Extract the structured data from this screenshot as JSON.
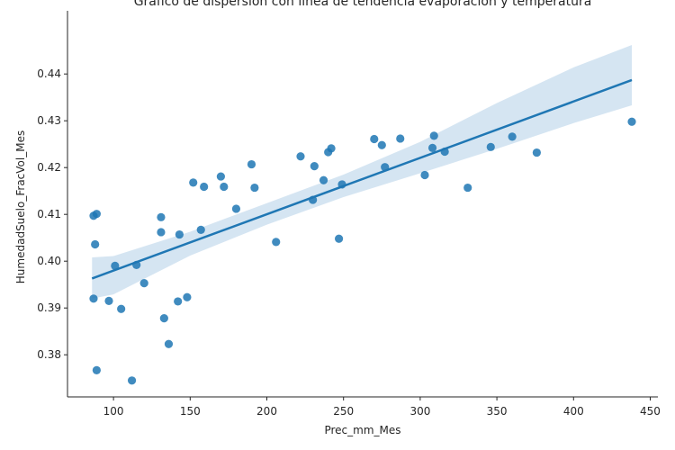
{
  "chart_data": {
    "type": "scatter",
    "title": "Gráfico de dispersión con línea de tendencia evaporación y temperatura",
    "xlabel": "Prec_mm_Mes",
    "ylabel": "HumedadSuelo_FracVol_Mes",
    "xlim": [
      70,
      455
    ],
    "ylim": [
      0.371,
      0.4535
    ],
    "xticks": [
      100,
      150,
      200,
      250,
      300,
      350,
      400,
      450
    ],
    "xtick_labels": [
      "100",
      "150",
      "200",
      "250",
      "300",
      "350",
      "400",
      "450"
    ],
    "yticks": [
      0.38,
      0.39,
      0.4,
      0.41,
      0.42,
      0.43,
      0.44
    ],
    "ytick_labels": [
      "0.38",
      "0.39",
      "0.40",
      "0.41",
      "0.42",
      "0.43",
      "0.44"
    ],
    "grid": false,
    "point_color": "#1f77b4",
    "line_color": "#1f77b4",
    "band_color": "#c7dcee",
    "points": [
      {
        "x": 87,
        "y": 0.4097
      },
      {
        "x": 89,
        "y": 0.4101
      },
      {
        "x": 88,
        "y": 0.4036
      },
      {
        "x": 87,
        "y": 0.392
      },
      {
        "x": 89,
        "y": 0.3767
      },
      {
        "x": 97,
        "y": 0.3915
      },
      {
        "x": 101,
        "y": 0.399
      },
      {
        "x": 105,
        "y": 0.3898
      },
      {
        "x": 112,
        "y": 0.3745
      },
      {
        "x": 115,
        "y": 0.3992
      },
      {
        "x": 120,
        "y": 0.3953
      },
      {
        "x": 131,
        "y": 0.4094
      },
      {
        "x": 131,
        "y": 0.4062
      },
      {
        "x": 133,
        "y": 0.3878
      },
      {
        "x": 136,
        "y": 0.3823
      },
      {
        "x": 142,
        "y": 0.3914
      },
      {
        "x": 143,
        "y": 0.4057
      },
      {
        "x": 148,
        "y": 0.3923
      },
      {
        "x": 152,
        "y": 0.4168
      },
      {
        "x": 157,
        "y": 0.4067
      },
      {
        "x": 159,
        "y": 0.4159
      },
      {
        "x": 170,
        "y": 0.4181
      },
      {
        "x": 172,
        "y": 0.4159
      },
      {
        "x": 180,
        "y": 0.4112
      },
      {
        "x": 190,
        "y": 0.4207
      },
      {
        "x": 192,
        "y": 0.4157
      },
      {
        "x": 206,
        "y": 0.4041
      },
      {
        "x": 222,
        "y": 0.4224
      },
      {
        "x": 230,
        "y": 0.4131
      },
      {
        "x": 231,
        "y": 0.4203
      },
      {
        "x": 237,
        "y": 0.4173
      },
      {
        "x": 240,
        "y": 0.4233
      },
      {
        "x": 242,
        "y": 0.4241
      },
      {
        "x": 247,
        "y": 0.4048
      },
      {
        "x": 249,
        "y": 0.4164
      },
      {
        "x": 270,
        "y": 0.4261
      },
      {
        "x": 275,
        "y": 0.4248
      },
      {
        "x": 277,
        "y": 0.4201
      },
      {
        "x": 287,
        "y": 0.4262
      },
      {
        "x": 303,
        "y": 0.4184
      },
      {
        "x": 308,
        "y": 0.4242
      },
      {
        "x": 309,
        "y": 0.4268
      },
      {
        "x": 316,
        "y": 0.4234
      },
      {
        "x": 331,
        "y": 0.4157
      },
      {
        "x": 346,
        "y": 0.4244
      },
      {
        "x": 360,
        "y": 0.4266
      },
      {
        "x": 376,
        "y": 0.4232
      },
      {
        "x": 438,
        "y": 0.4298
      }
    ],
    "trend_line": [
      {
        "x": 86,
        "y": 0.3963
      },
      {
        "x": 438,
        "y": 0.4387
      }
    ],
    "confidence_band": {
      "x": [
        86,
        100,
        150,
        200,
        250,
        300,
        350,
        400,
        438
      ],
      "upper": [
        0.4008,
        0.4011,
        0.4063,
        0.4124,
        0.4185,
        0.4255,
        0.4338,
        0.4414,
        0.4462
      ],
      "lower": [
        0.392,
        0.3929,
        0.4012,
        0.4078,
        0.4137,
        0.4188,
        0.424,
        0.4295,
        0.4333
      ]
    }
  }
}
